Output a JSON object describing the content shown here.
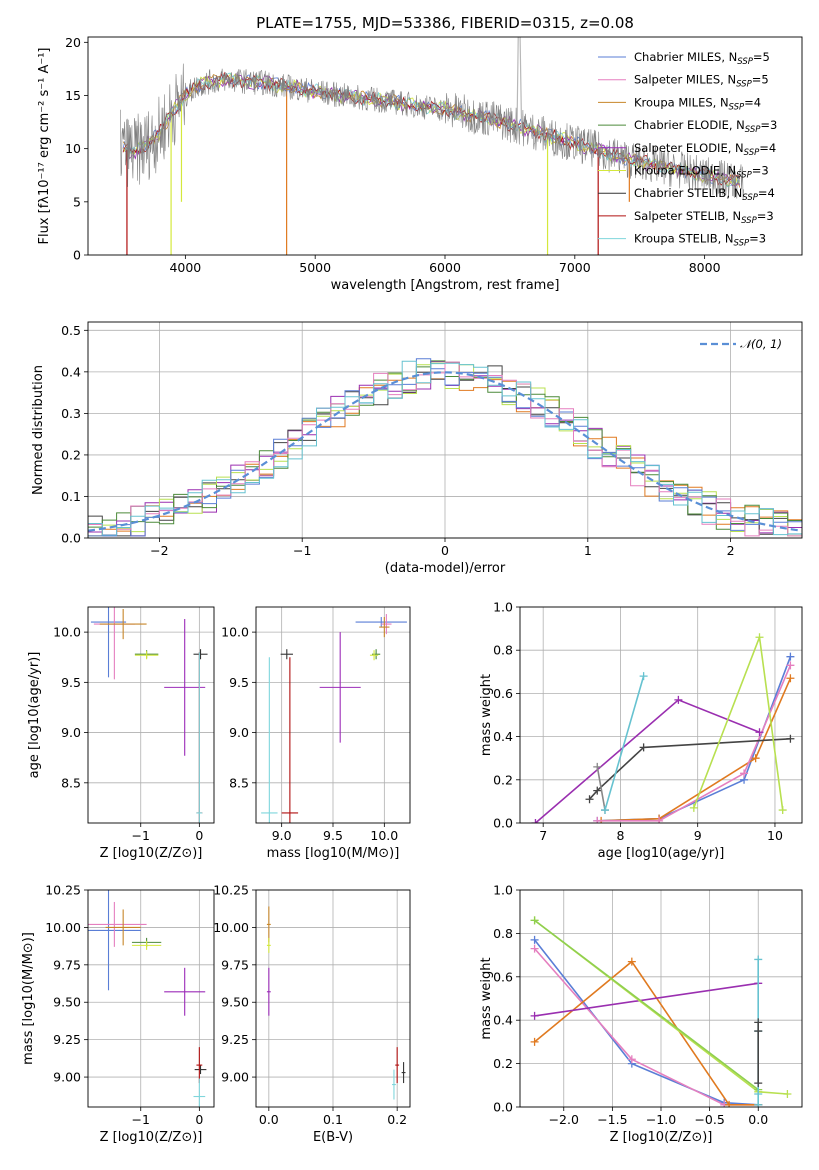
{
  "figure": {
    "title": "PLATE=1755, MJD=53386, FIBERID=0315, z=0.08"
  },
  "colors": {
    "Chabrier MILES": "#5a7ed6",
    "Salpeter MILES": "#e57fbf",
    "Kroupa MILES": "#c7862a",
    "Chabrier ELODIE": "#4c8a3a",
    "Salpeter ELODIE": "#9b2bb8",
    "Kroupa ELODIE": "#d4e83c",
    "Chabrier STELIB": "#333333",
    "Salpeter STELIB": "#b01010",
    "Kroupa STELIB": "#7fd6dc",
    "model_orange": "#e07a20",
    "model_purple": "#9a2fb0",
    "model_dark": "#444444",
    "model_cyan": "#66c2d0",
    "model_lime": "#b8e050",
    "model_blue": "#5a7ed6",
    "model_pink": "#e57fbf",
    "spectrum_gray": "#808080",
    "normal_curve": "#5a8fd6"
  },
  "chart_data": [
    {
      "type": "line",
      "name": "spectrum",
      "xlabel": "wavelength [Angstrom, rest frame]",
      "ylabel": "Flux [fλ10⁻¹⁷ erg cm⁻² s⁻¹ A⁻¹]",
      "xlim": [
        3250,
        8750
      ],
      "ylim": [
        0,
        20.5
      ],
      "xticks": [
        4000,
        5000,
        6000,
        7000,
        8000
      ],
      "yticks": [
        0,
        5,
        10,
        15,
        20
      ],
      "legend_position": "upper-right",
      "legend": [
        "Chabrier MILES, N_SSP=5",
        "Salpeter MILES, N_SSP=5",
        "Kroupa MILES, N_SSP=4",
        "Chabrier ELODIE, N_SSP=3",
        "Salpeter ELODIE, N_SSP=4",
        "Kroupa ELODIE, N_SSP=3",
        "Chabrier STELIB, N_SSP=4",
        "Salpeter STELIB, N_SSP=3",
        "Kroupa STELIB, N_SSP=3"
      ],
      "continuum": {
        "x": [
          3500,
          3600,
          3700,
          3800,
          3900,
          4000,
          4100,
          4200,
          4300,
          4400,
          4600,
          4800,
          5000,
          5200,
          5400,
          5600,
          5800,
          6000,
          6200,
          6400,
          6600,
          6800,
          7000,
          7200,
          7400,
          7600,
          7800,
          8000,
          8200,
          8300
        ],
        "y": [
          10.2,
          9.6,
          10.3,
          11.5,
          13.5,
          15.0,
          16.0,
          16.3,
          16.5,
          16.4,
          16.2,
          15.8,
          15.4,
          15.0,
          14.7,
          14.4,
          14.0,
          13.7,
          13.2,
          12.7,
          12.0,
          11.2,
          10.5,
          9.8,
          9.0,
          8.5,
          8.0,
          7.5,
          7.0,
          6.8
        ]
      }
    },
    {
      "type": "histogram",
      "name": "residuals",
      "xlabel": "(data-model)/error",
      "ylabel": "Normed distribution",
      "xlim": [
        -2.5,
        2.5
      ],
      "ylim": [
        0,
        0.52
      ],
      "xticks": [
        -2,
        -1,
        0,
        1,
        2
      ],
      "yticks": [
        0.0,
        0.1,
        0.2,
        0.3,
        0.4,
        0.5
      ],
      "legend": [
        "𝒩(0, 1)"
      ],
      "legend_position": "upper-right",
      "bin_edges_start": -2.5,
      "bin_width": 0.1
    },
    {
      "type": "scatter",
      "name": "age-vs-Z",
      "xlabel": "Z [log10(Z/Z⊙)]",
      "ylabel": "age  [log10(age/yr)]",
      "xlim": [
        -1.9,
        0.25
      ],
      "ylim": [
        8.1,
        10.25
      ],
      "xticks": [
        -1,
        0
      ],
      "yticks": [
        8.5,
        9.0,
        9.5,
        10.0
      ],
      "points": [
        {
          "model": "Chabrier MILES",
          "x": -1.55,
          "y": 10.1,
          "xerr": 0.3,
          "yerr": 0.55
        },
        {
          "model": "Salpeter MILES",
          "x": -1.45,
          "y": 10.08,
          "xerr": 0.35,
          "yerr": 0.55
        },
        {
          "model": "Kroupa MILES",
          "x": -1.3,
          "y": 10.08,
          "xerr": 0.4,
          "yerr": 0.15
        },
        {
          "model": "Chabrier ELODIE",
          "x": -0.9,
          "y": 9.78,
          "xerr": 0.2,
          "yerr": 0.04
        },
        {
          "model": "Kroupa ELODIE",
          "x": -0.9,
          "y": 9.77,
          "xerr": 0.2,
          "yerr": 0.04
        },
        {
          "model": "Salpeter ELODIE",
          "x": -0.25,
          "y": 9.45,
          "xerr": 0.35,
          "yerr": 0.68
        },
        {
          "model": "Chabrier STELIB",
          "x": 0.02,
          "y": 9.78,
          "xerr": 0.12,
          "yerr": 0.05
        },
        {
          "model": "Salpeter STELIB",
          "x": 0.0,
          "y": 8.2,
          "xerr": 0.05,
          "yerr": 1.6
        },
        {
          "model": "Kroupa STELIB",
          "x": 0.0,
          "y": 8.2,
          "xerr": 0.05,
          "yerr": 1.6
        }
      ]
    },
    {
      "type": "scatter",
      "name": "age-vs-mass",
      "xlabel": "mass [log10(M/M⊙)]",
      "ylabel": "",
      "xlim": [
        8.75,
        10.25
      ],
      "ylim": [
        8.1,
        10.25
      ],
      "xticks": [
        9.0,
        9.5,
        10.0
      ],
      "yticks": [
        8.5,
        9.0,
        9.5,
        10.0
      ],
      "points": [
        {
          "model": "Chabrier MILES",
          "x": 9.97,
          "y": 10.1,
          "xerr": 0.25,
          "yerr": 0.05
        },
        {
          "model": "Salpeter MILES",
          "x": 10.02,
          "y": 10.08,
          "xerr": 0.05,
          "yerr": 0.1
        },
        {
          "model": "Kroupa MILES",
          "x": 10.0,
          "y": 10.05,
          "xerr": 0.05,
          "yerr": 0.1
        },
        {
          "model": "Chabrier ELODIE",
          "x": 9.92,
          "y": 9.78,
          "xerr": 0.04,
          "yerr": 0.05
        },
        {
          "model": "Kroupa ELODIE",
          "x": 9.9,
          "y": 9.77,
          "xerr": 0.04,
          "yerr": 0.05
        },
        {
          "model": "Salpeter ELODIE",
          "x": 9.57,
          "y": 9.45,
          "xerr": 0.2,
          "yerr": 0.55
        },
        {
          "model": "Chabrier STELIB",
          "x": 9.05,
          "y": 9.78,
          "xerr": 0.06,
          "yerr": 0.05
        },
        {
          "model": "Salpeter STELIB",
          "x": 9.08,
          "y": 8.2,
          "xerr": 0.08,
          "yerr": 1.55
        },
        {
          "model": "Kroupa STELIB",
          "x": 8.88,
          "y": 8.2,
          "xerr": 0.08,
          "yerr": 1.55
        }
      ]
    },
    {
      "type": "line",
      "name": "mass-weight-vs-age",
      "xlabel": "age  [log10(age/yr)]",
      "ylabel": "mass weight",
      "xlim": [
        6.7,
        10.35
      ],
      "ylim": [
        0,
        1.0
      ],
      "xticks": [
        7,
        8,
        9,
        10
      ],
      "yticks": [
        0.0,
        0.2,
        0.4,
        0.6,
        0.8,
        1.0
      ],
      "series": [
        {
          "model": "blue",
          "x": [
            7.7,
            8.5,
            9.6,
            10.2
          ],
          "y": [
            0.01,
            0.02,
            0.2,
            0.77
          ]
        },
        {
          "model": "orange",
          "x": [
            7.75,
            8.5,
            9.75,
            10.2
          ],
          "y": [
            0.01,
            0.02,
            0.3,
            0.67
          ]
        },
        {
          "model": "pink",
          "x": [
            7.7,
            8.5,
            9.6,
            10.2
          ],
          "y": [
            0.01,
            0.01,
            0.23,
            0.73
          ]
        },
        {
          "model": "purple",
          "x": [
            6.9,
            8.75,
            9.8
          ],
          "y": [
            0.0,
            0.57,
            0.42
          ]
        },
        {
          "model": "dark",
          "x": [
            7.6,
            7.7,
            8.3,
            10.2
          ],
          "y": [
            0.11,
            0.15,
            0.35,
            0.39
          ]
        },
        {
          "model": "gray",
          "x": [
            7.7,
            7.8
          ],
          "y": [
            0.26,
            0.06
          ]
        },
        {
          "model": "cyan",
          "x": [
            7.8,
            8.3
          ],
          "y": [
            0.06,
            0.68
          ]
        },
        {
          "model": "lime",
          "x": [
            8.95,
            9.8,
            10.1
          ],
          "y": [
            0.07,
            0.86,
            0.06
          ]
        }
      ]
    },
    {
      "type": "scatter",
      "name": "mass-vs-Z",
      "xlabel": "Z [log10(Z/Z⊙)]",
      "ylabel": "mass [log10(M/M⊙)]",
      "xlim": [
        -1.9,
        0.25
      ],
      "ylim": [
        8.8,
        10.25
      ],
      "xticks": [
        -1,
        0
      ],
      "yticks": [
        9.0,
        9.25,
        9.5,
        9.75,
        10.0,
        10.25
      ],
      "points": [
        {
          "model": "Chabrier MILES",
          "x": -1.55,
          "y": 9.98,
          "xerr": 0.55,
          "yerr": 0.4
        },
        {
          "model": "Salpeter MILES",
          "x": -1.45,
          "y": 10.02,
          "xerr": 0.55,
          "yerr": 0.15
        },
        {
          "model": "Kroupa MILES",
          "x": -1.3,
          "y": 10.0,
          "xerr": 0.3,
          "yerr": 0.12
        },
        {
          "model": "Chabrier ELODIE",
          "x": -0.9,
          "y": 9.9,
          "xerr": 0.25,
          "yerr": 0.03
        },
        {
          "model": "Kroupa ELODIE",
          "x": -0.9,
          "y": 9.88,
          "xerr": 0.25,
          "yerr": 0.03
        },
        {
          "model": "Salpeter ELODIE",
          "x": -0.25,
          "y": 9.57,
          "xerr": 0.35,
          "yerr": 0.16
        },
        {
          "model": "Chabrier STELIB",
          "x": 0.02,
          "y": 9.05,
          "xerr": 0.1,
          "yerr": 0.03
        },
        {
          "model": "Salpeter STELIB",
          "x": 0.0,
          "y": 9.08,
          "xerr": 0.05,
          "yerr": 0.12
        },
        {
          "model": "Kroupa STELIB",
          "x": 0.0,
          "y": 8.87,
          "xerr": 0.1,
          "yerr": 0.12
        }
      ]
    },
    {
      "type": "scatter",
      "name": "mass-vs-ebv",
      "xlabel": "E(B-V)",
      "ylabel": "",
      "xlim": [
        -0.02,
        0.22
      ],
      "ylim": [
        8.8,
        10.25
      ],
      "xticks": [
        0.0,
        0.1,
        0.2
      ],
      "yticks": [
        9.0,
        9.25,
        9.5,
        9.75,
        10.0,
        10.25
      ],
      "points": [
        {
          "model": "Kroupa MILES",
          "x": 0.0,
          "y": 10.02,
          "xerr": 0.003,
          "yerr": 0.12
        },
        {
          "model": "Kroupa ELODIE",
          "x": 0.0,
          "y": 9.88,
          "xerr": 0.003,
          "yerr": 0.05
        },
        {
          "model": "Salpeter ELODIE",
          "x": 0.0,
          "y": 9.57,
          "xerr": 0.003,
          "yerr": 0.16
        },
        {
          "model": "Salpeter STELIB",
          "x": 0.2,
          "y": 9.08,
          "xerr": 0.003,
          "yerr": 0.12
        },
        {
          "model": "Chabrier STELIB",
          "x": 0.21,
          "y": 9.03,
          "xerr": 0.003,
          "yerr": 0.07
        },
        {
          "model": "Kroupa STELIB",
          "x": 0.195,
          "y": 8.95,
          "xerr": 0.003,
          "yerr": 0.1
        }
      ]
    },
    {
      "type": "line",
      "name": "mass-weight-vs-Z",
      "xlabel": "Z [log10(Z/Z⊙)]",
      "ylabel": "mass weight",
      "xlim": [
        -2.45,
        0.45
      ],
      "ylim": [
        0,
        1.0
      ],
      "xticks": [
        -2.0,
        -1.5,
        -1.0,
        -0.5,
        0.0
      ],
      "yticks": [
        0.0,
        0.2,
        0.4,
        0.6,
        0.8,
        1.0
      ],
      "series": [
        {
          "model": "blue",
          "x": [
            -2.3,
            -1.3,
            -0.35,
            0.0
          ],
          "y": [
            0.77,
            0.2,
            0.02,
            0.01
          ]
        },
        {
          "model": "pink",
          "x": [
            -2.3,
            -1.3,
            -0.35,
            0.0
          ],
          "y": [
            0.73,
            0.22,
            0.01,
            0.01
          ]
        },
        {
          "model": "orange",
          "x": [
            -2.3,
            -1.3,
            -0.3,
            0.0
          ],
          "y": [
            0.3,
            0.67,
            0.01,
            0.01
          ]
        },
        {
          "model": "purple",
          "x": [
            -2.3,
            0.0
          ],
          "y": [
            0.42,
            0.57
          ]
        },
        {
          "model": "lime",
          "x": [
            -2.3,
            0.0,
            0.3
          ],
          "y": [
            0.86,
            0.07,
            0.06
          ]
        },
        {
          "model": "green",
          "x": [
            -2.3,
            0.0
          ],
          "y": [
            0.86,
            0.08
          ]
        },
        {
          "model": "cyan",
          "x": [
            0.0,
            0.0,
            0.0,
            0.0
          ],
          "y": [
            0.68,
            0.35,
            0.06,
            0.01
          ]
        },
        {
          "model": "dark",
          "x": [
            0.0,
            0.0,
            0.0
          ],
          "y": [
            0.39,
            0.35,
            0.11
          ]
        }
      ]
    }
  ]
}
